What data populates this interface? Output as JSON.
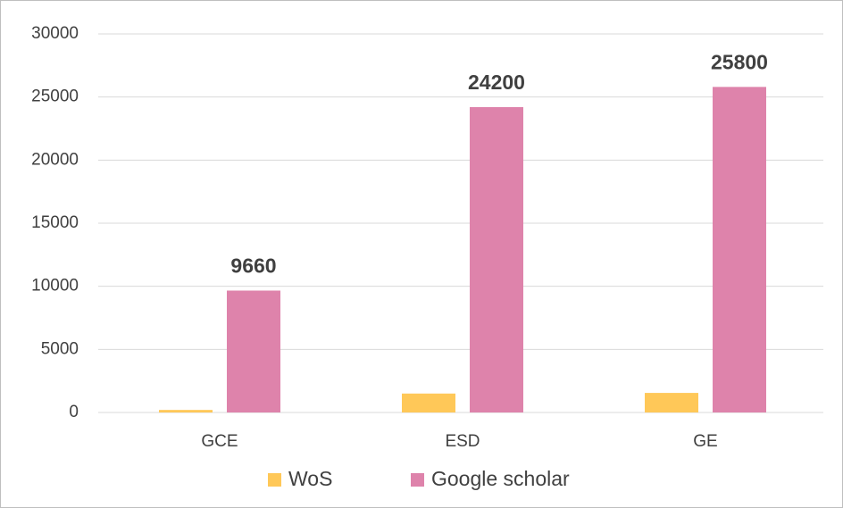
{
  "chart_data": {
    "type": "bar",
    "categories": [
      "GCE",
      "ESD",
      "GE"
    ],
    "series": [
      {
        "name": "WoS",
        "color": "#ffc858",
        "values": [
          200,
          1500,
          1550
        ]
      },
      {
        "name": "Google scholar",
        "color": "#de83ab",
        "values": [
          9660,
          24200,
          25800
        ],
        "value_labels": [
          "9660",
          "24200",
          "25800"
        ]
      }
    ],
    "ylim": [
      0,
      30000
    ],
    "yticks": [
      0,
      5000,
      10000,
      15000,
      20000,
      25000,
      30000
    ],
    "grid": true,
    "legend": "bottom"
  }
}
